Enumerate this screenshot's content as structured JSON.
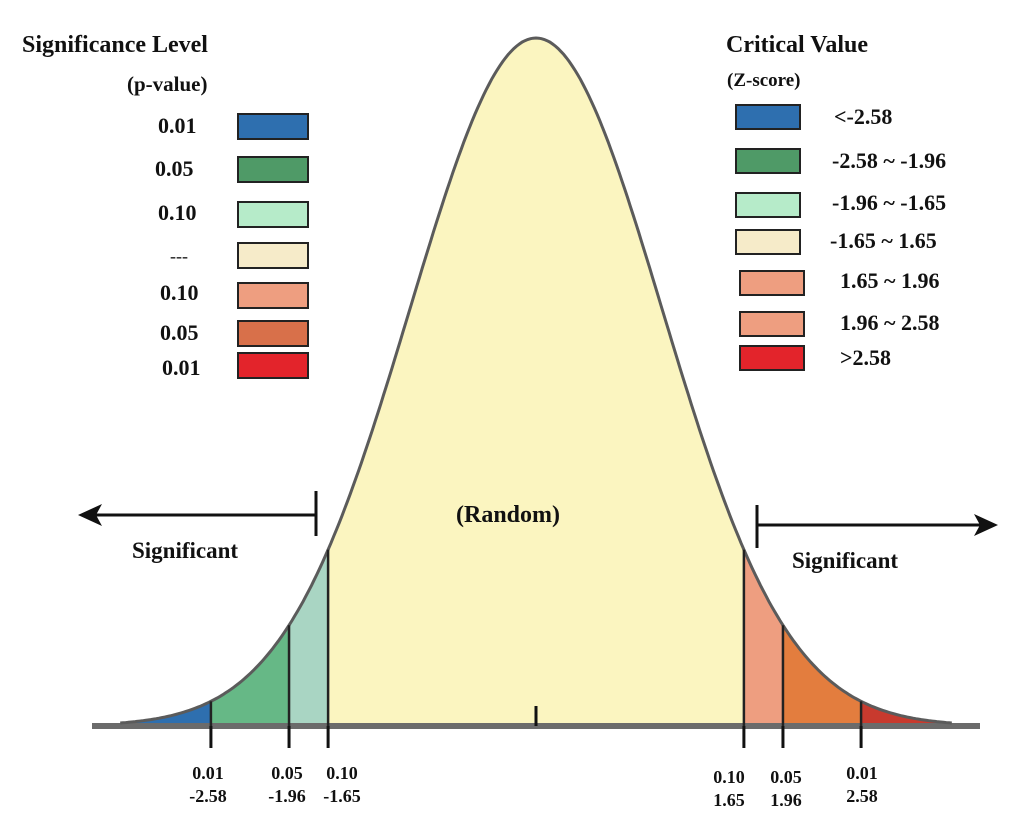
{
  "legend_left": {
    "title": "Significance Level",
    "subtitle": "(p-value)",
    "items": [
      {
        "label": "0.01",
        "color": "#2E6FAF"
      },
      {
        "label": "0.05",
        "color": "#4F9A67"
      },
      {
        "label": "0.10",
        "color": "#B6EBC9"
      },
      {
        "label": "---",
        "color": "#F6EBC9"
      },
      {
        "label": "0.10",
        "color": "#EE9E80"
      },
      {
        "label": "0.05",
        "color": "#D8704A"
      },
      {
        "label": "0.01",
        "color": "#E3242B"
      }
    ]
  },
  "legend_right": {
    "title": "Critical Value",
    "subtitle": "(Z-score)",
    "items": [
      {
        "label": "<-2.58",
        "color": "#2E6FAF"
      },
      {
        "label": "-2.58 ~ -1.96",
        "color": "#4F9A67"
      },
      {
        "label": "-1.96 ~ -1.65",
        "color": "#B6EBC9"
      },
      {
        "label": "-1.65 ~ 1.65",
        "color": "#F6EBC9"
      },
      {
        "label": "1.65 ~ 1.96",
        "color": "#EE9E80"
      },
      {
        "label": "1.96 ~ 2.58",
        "color": "#EE9E80"
      },
      {
        "label": ">2.58",
        "color": "#E3242B"
      }
    ]
  },
  "center_label": "(Random)",
  "left_label": "Significant",
  "right_label": "Significant",
  "regions": [
    {
      "from": -4.5,
      "to": -2.58,
      "color": "#2E6FAF"
    },
    {
      "from": -2.58,
      "to": -1.96,
      "color": "#66B886"
    },
    {
      "from": -1.96,
      "to": -1.65,
      "color": "#A9D5C3"
    },
    {
      "from": -1.65,
      "to": 1.65,
      "color": "#FBF5C0"
    },
    {
      "from": 1.65,
      "to": 1.96,
      "color": "#EE9E80"
    },
    {
      "from": 1.96,
      "to": 2.58,
      "color": "#E37D3E"
    },
    {
      "from": 2.58,
      "to": 4.5,
      "color": "#C83A2E"
    }
  ],
  "ticks": [
    {
      "z": -2.58,
      "p": "0.01",
      "zlabel": "-2.58"
    },
    {
      "z": -1.96,
      "p": "0.05",
      "zlabel": "-1.96"
    },
    {
      "z": -1.65,
      "p": "0.10",
      "zlabel": "-1.65"
    },
    {
      "z": 1.65,
      "p": "0.10",
      "zlabel": "1.65"
    },
    {
      "z": 1.96,
      "p": "0.05",
      "zlabel": "1.96"
    },
    {
      "z": 2.58,
      "p": "0.01",
      "zlabel": "2.58"
    }
  ]
}
